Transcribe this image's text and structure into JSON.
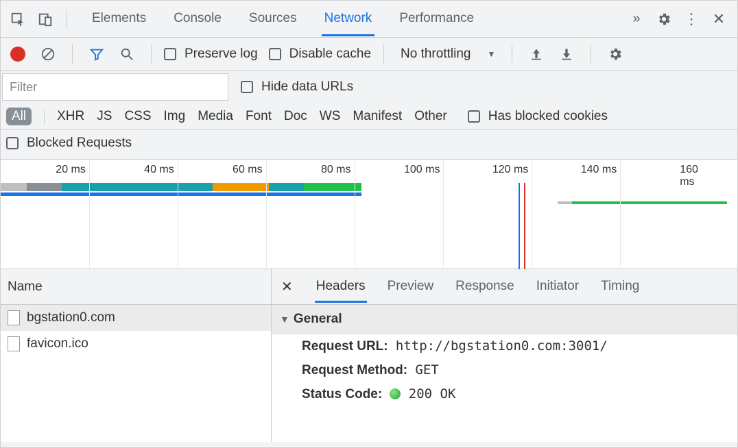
{
  "tabs": {
    "items": [
      "Elements",
      "Console",
      "Sources",
      "Network",
      "Performance"
    ],
    "active_index": 3
  },
  "toolbar": {
    "preserve_log_label": "Preserve log",
    "disable_cache_label": "Disable cache",
    "throttling_label": "No throttling"
  },
  "filter": {
    "placeholder": "Filter",
    "hide_data_urls_label": "Hide data URLs"
  },
  "type_filters": {
    "items": [
      "All",
      "XHR",
      "JS",
      "CSS",
      "Img",
      "Media",
      "Font",
      "Doc",
      "WS",
      "Manifest",
      "Other"
    ],
    "active_index": 0,
    "has_blocked_cookies_label": "Has blocked cookies"
  },
  "blocked_requests_label": "Blocked Requests",
  "timeline": {
    "ticks": [
      "20 ms",
      "40 ms",
      "60 ms",
      "80 ms",
      "100 ms",
      "120 ms",
      "140 ms",
      "160 ms"
    ],
    "tick_positions_pct": [
      12.0,
      24.0,
      36.0,
      48.0,
      60.1,
      72.1,
      84.1,
      96.1
    ],
    "gridlines_pct": [
      12.0,
      24.0,
      36.0,
      48.0,
      60.1,
      72.1,
      84.1
    ],
    "segments": [
      {
        "left_pct": 0.0,
        "width_pct": 3.5,
        "color": "#bfbfbf"
      },
      {
        "left_pct": 3.5,
        "width_pct": 4.8,
        "color": "#8a8f94"
      },
      {
        "left_pct": 8.3,
        "width_pct": 20.5,
        "color": "#1aa0a8"
      },
      {
        "left_pct": 28.8,
        "width_pct": 7.6,
        "color": "#f29900"
      },
      {
        "left_pct": 36.4,
        "width_pct": 4.8,
        "color": "#1aa0a8"
      },
      {
        "left_pct": 41.2,
        "width_pct": 7.8,
        "color": "#1ec24a"
      }
    ],
    "underbar": {
      "left_pct": 0.0,
      "width_pct": 49.0,
      "color": "#1a73e8"
    },
    "request2": {
      "queue": {
        "left_pct": 75.6,
        "width_pct": 2.0,
        "color": "#bfbfbf"
      },
      "bar": {
        "left_pct": 77.6,
        "width_pct": 21.0,
        "color": "#1ec24a"
      }
    },
    "markers": [
      {
        "left_pct": 70.3,
        "color": "#1a73e8"
      },
      {
        "left_pct": 71.0,
        "color": "#d93025"
      }
    ]
  },
  "requests": {
    "header": "Name",
    "items": [
      "bgstation0.com",
      "favicon.ico"
    ],
    "selected_index": 0
  },
  "details": {
    "tabs": [
      "Headers",
      "Preview",
      "Response",
      "Initiator",
      "Timing"
    ],
    "active_index": 0,
    "general_label": "General",
    "request_url_label": "Request URL:",
    "request_url_value": "http://bgstation0.com:3001/",
    "request_method_label": "Request Method:",
    "request_method_value": "GET",
    "status_code_label": "Status Code:",
    "status_code_value": "200 OK"
  },
  "colors": {
    "accent": "#1a73e8",
    "record": "#d93025",
    "filter_icon": "#1a73e8",
    "muted": "#5f6368"
  }
}
